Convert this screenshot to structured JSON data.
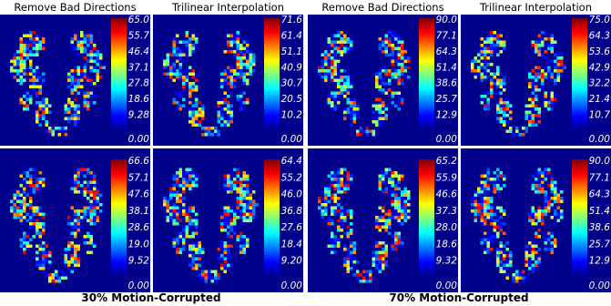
{
  "groups": [
    {
      "caption": "30% Motion-Corrupted",
      "column_titles": [
        "Remove Bad Directions",
        "Trilinear Interpolation"
      ],
      "panels": [
        {
          "colorbar_labels": [
            "65.0",
            "55.7",
            "46.4",
            "37.1",
            "27.8",
            "18.6",
            "9.28",
            "0.00"
          ]
        },
        {
          "colorbar_labels": [
            "71.6",
            "61.4",
            "51.1",
            "40.9",
            "30.7",
            "20.5",
            "10.2",
            "0.00"
          ]
        },
        {
          "colorbar_labels": [
            "66.6",
            "57.1",
            "47.6",
            "38.1",
            "28.6",
            "19.0",
            "9.52",
            "0.00"
          ]
        },
        {
          "colorbar_labels": [
            "64.4",
            "55.2",
            "46.0",
            "36.8",
            "27.6",
            "18.4",
            "9.20",
            "0.00"
          ]
        }
      ]
    },
    {
      "caption": "70% Motion-Corrupted",
      "column_titles": [
        "Remove Bad Directions",
        "Trilinear Interpolation"
      ],
      "panels": [
        {
          "colorbar_labels": [
            "90.0",
            "77.1",
            "64.3",
            "51.4",
            "38.6",
            "25.7",
            "12.9",
            "0.00"
          ]
        },
        {
          "colorbar_labels": [
            "75.0",
            "64.3",
            "53.6",
            "42.9",
            "32.2",
            "21.4",
            "10.7",
            "0.00"
          ]
        },
        {
          "colorbar_labels": [
            "65.2",
            "55.9",
            "46.6",
            "37.3",
            "28.0",
            "18.6",
            "9.32",
            "0.00"
          ]
        },
        {
          "colorbar_labels": [
            "90.0",
            "77.1",
            "64.3",
            "51.4",
            "38.6",
            "25.7",
            "12.9",
            "0.00"
          ]
        }
      ]
    }
  ]
}
